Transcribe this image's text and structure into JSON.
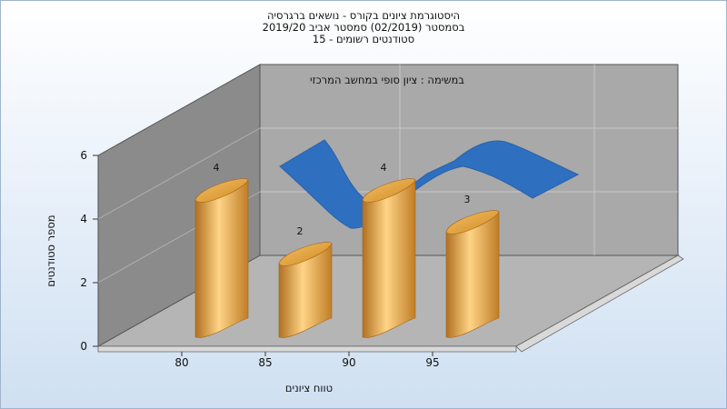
{
  "chart_data": {
    "type": "bar",
    "title_lines": [
      "היסטוגרמת ציונים בקורס - נושאים ברגרסיה",
      "בסמסטר  (02/2019)  סמסטר אביב 2019/20",
      "סטודנטים רשומים - 15"
    ],
    "inner_title": "במשימה : ציון סופי במחשב המרכזי",
    "xlabel": "טווח ציונים",
    "ylabel": "מספר סטודנטים",
    "x_ticks": [
      "80",
      "85",
      "90",
      "95"
    ],
    "y_ticks": [
      "0",
      "2",
      "4",
      "6"
    ],
    "ylim": [
      0,
      6
    ],
    "categories": [
      "80",
      "85",
      "90",
      "95"
    ],
    "values": [
      4,
      2,
      4,
      3
    ],
    "bar_color": "#f2b45a",
    "line_color": "#2f6fc0"
  }
}
